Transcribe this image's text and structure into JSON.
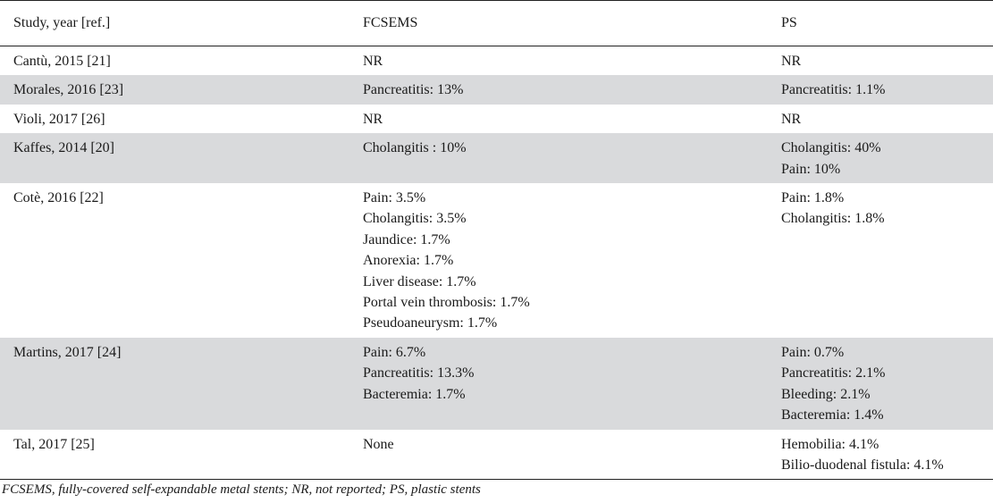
{
  "table": {
    "headers": [
      "Study, year [ref.]",
      "FCSEMS",
      "PS"
    ],
    "rows": [
      {
        "study": "Cantù, 2015 [21]",
        "fcsems": [
          "NR"
        ],
        "ps": [
          "NR"
        ]
      },
      {
        "study": "Morales, 2016 [23]",
        "fcsems": [
          "Pancreatitis: 13%"
        ],
        "ps": [
          "Pancreatitis: 1.1%"
        ]
      },
      {
        "study": "Violi, 2017 [26]",
        "fcsems": [
          "NR"
        ],
        "ps": [
          "NR"
        ]
      },
      {
        "study": "Kaffes, 2014 [20]",
        "fcsems": [
          "Cholangitis : 10%"
        ],
        "ps": [
          "Cholangitis: 40%",
          "Pain: 10%"
        ]
      },
      {
        "study": "Cotè, 2016 [22]",
        "fcsems": [
          "Pain: 3.5%",
          "Cholangitis: 3.5%",
          "Jaundice: 1.7%",
          "Anorexia: 1.7%",
          "Liver disease: 1.7%",
          "Portal vein thrombosis: 1.7%",
          "Pseudoaneurysm: 1.7%"
        ],
        "ps": [
          "Pain: 1.8%",
          "Cholangitis: 1.8%"
        ]
      },
      {
        "study": "Martins, 2017 [24]",
        "fcsems": [
          "Pain: 6.7%",
          "Pancreatitis: 13.3%",
          "Bacteremia: 1.7%"
        ],
        "ps": [
          "Pain: 0.7%",
          "Pancreatitis: 2.1%",
          "Bleeding: 2.1%",
          "Bacteremia: 1.4%"
        ]
      },
      {
        "study": "Tal, 2017 [25]",
        "fcsems": [
          "None"
        ],
        "ps": [
          "Hemobilia: 4.1%",
          "Bilio-duodenal fistula: 4.1%"
        ]
      }
    ]
  },
  "footnote": "FCSEMS, fully-covered self-expandable metal stents; NR, not reported; PS, plastic stents",
  "colors": {
    "shaded_row": "#d9dadc",
    "rule": "#222222",
    "text": "#1a1a1a"
  }
}
